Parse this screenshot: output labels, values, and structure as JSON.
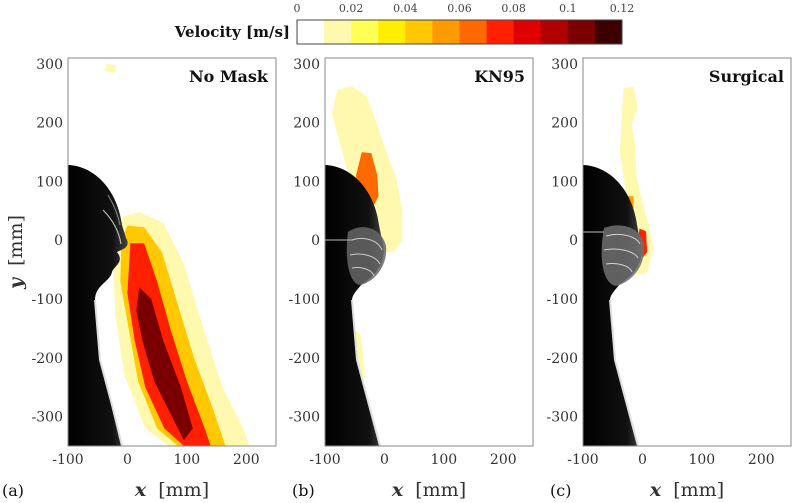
{
  "colorbar": {
    "label": "Velocity [m/s]",
    "ticks": [
      0,
      0.02,
      0.04,
      0.06,
      0.08,
      0.1,
      0.12
    ],
    "tick_labels": [
      "0",
      "0.02",
      "0.04",
      "0.06",
      "0.08",
      "0.1",
      "0.12"
    ],
    "levels": [
      0,
      0.01,
      0.02,
      0.03,
      0.04,
      0.05,
      0.06,
      0.07,
      0.08,
      0.09,
      0.1,
      0.11,
      0.12
    ],
    "colors": [
      "#ffffff",
      "#fff9b0",
      "#ffff55",
      "#ffee00",
      "#ffc800",
      "#ff9a00",
      "#ff6a00",
      "#ff2000",
      "#e00000",
      "#b00000",
      "#7a0000",
      "#3d0000"
    ]
  },
  "chart_data": [
    {
      "type": "heatmap",
      "panel": "(a)",
      "title": "No Mask",
      "xlabel_var": "x",
      "xlabel_unit": "[mm]",
      "ylabel_var": "y",
      "ylabel_unit": "[mm]",
      "xlim": [
        -100,
        250
      ],
      "ylim": [
        -350,
        310
      ],
      "xticks": [
        -100,
        0,
        100,
        200
      ],
      "yticks": [
        -300,
        -200,
        -100,
        0,
        100,
        200,
        300
      ],
      "velocity_regions": [
        {
          "velocity": 0.01,
          "outline_mm": [
            [
              -8,
              40
            ],
            [
              20,
              48
            ],
            [
              60,
              30
            ],
            [
              95,
              -40
            ],
            [
              128,
              -150
            ],
            [
              160,
              -250
            ],
            [
              195,
              -320
            ],
            [
              205,
              -350
            ],
            [
              70,
              -350
            ],
            [
              30,
              -320
            ],
            [
              -5,
              -230
            ],
            [
              -20,
              -130
            ],
            [
              -25,
              -40
            ],
            [
              -15,
              20
            ]
          ]
        },
        {
          "velocity": 0.04,
          "outline_mm": [
            [
              0,
              25
            ],
            [
              28,
              22
            ],
            [
              58,
              -20
            ],
            [
              85,
              -110
            ],
            [
              112,
              -200
            ],
            [
              145,
              -290
            ],
            [
              165,
              -350
            ],
            [
              85,
              -350
            ],
            [
              50,
              -320
            ],
            [
              18,
              -240
            ],
            [
              2,
              -150
            ],
            [
              -12,
              -70
            ],
            [
              -10,
              0
            ]
          ]
        },
        {
          "velocity": 0.07,
          "outline_mm": [
            [
              5,
              -5
            ],
            [
              28,
              -5
            ],
            [
              50,
              -70
            ],
            [
              72,
              -150
            ],
            [
              100,
              -240
            ],
            [
              130,
              -320
            ],
            [
              140,
              -350
            ],
            [
              95,
              -350
            ],
            [
              62,
              -320
            ],
            [
              30,
              -250
            ],
            [
              12,
              -170
            ],
            [
              0,
              -90
            ]
          ]
        },
        {
          "velocity": 0.1,
          "outline_mm": [
            [
              20,
              -80
            ],
            [
              40,
              -100
            ],
            [
              60,
              -170
            ],
            [
              90,
              -250
            ],
            [
              110,
              -320
            ],
            [
              95,
              -340
            ],
            [
              75,
              -300
            ],
            [
              45,
              -240
            ],
            [
              25,
              -170
            ],
            [
              15,
              -120
            ]
          ]
        }
      ],
      "far_field_patches": [
        {
          "velocity": 0.01,
          "outline_mm": [
            [
              -35,
              300
            ],
            [
              -20,
              298
            ],
            [
              -22,
              285
            ],
            [
              -38,
              288
            ]
          ]
        }
      ]
    },
    {
      "type": "heatmap",
      "panel": "(b)",
      "title": "KN95",
      "xlabel_var": "x",
      "xlabel_unit": "[mm]",
      "xlim": [
        -100,
        250
      ],
      "ylim": [
        -350,
        310
      ],
      "xticks": [
        -100,
        0,
        100,
        200
      ],
      "yticks": [
        -300,
        -200,
        -100,
        0,
        100,
        200,
        300
      ],
      "velocity_regions": [
        {
          "velocity": 0.01,
          "outline_mm": [
            [
              -80,
              255
            ],
            [
              -55,
              262
            ],
            [
              -30,
              245
            ],
            [
              -15,
              205
            ],
            [
              0,
              160
            ],
            [
              20,
              105
            ],
            [
              30,
              50
            ],
            [
              30,
              0
            ],
            [
              15,
              -20
            ],
            [
              -5,
              -20
            ],
            [
              -20,
              10
            ],
            [
              -40,
              45
            ],
            [
              -60,
              110
            ],
            [
              -75,
              165
            ],
            [
              -88,
              215
            ]
          ]
        },
        {
          "velocity": 0.06,
          "outline_mm": [
            [
              -38,
              150
            ],
            [
              -22,
              148
            ],
            [
              -12,
              110
            ],
            [
              -10,
              75
            ],
            [
              -20,
              55
            ],
            [
              -42,
              70
            ],
            [
              -48,
              110
            ]
          ]
        },
        {
          "velocity": 0.01,
          "outline_mm": [
            [
              -55,
              -150
            ],
            [
              -40,
              -160
            ],
            [
              -32,
              -230
            ],
            [
              -40,
              -250
            ],
            [
              -55,
              -225
            ]
          ]
        }
      ],
      "far_field_patches": []
    },
    {
      "type": "heatmap",
      "panel": "(c)",
      "title": "Surgical",
      "xlabel_var": "x",
      "xlabel_unit": "[mm]",
      "xlim": [
        -100,
        250
      ],
      "ylim": [
        -350,
        310
      ],
      "xticks": [
        -100,
        0,
        100,
        200
      ],
      "yticks": [
        -300,
        -200,
        -100,
        0,
        100,
        200,
        300
      ],
      "velocity_regions": [
        {
          "velocity": 0.01,
          "outline_mm": [
            [
              -32,
              258
            ],
            [
              -15,
              262
            ],
            [
              -8,
              225
            ],
            [
              -18,
              195
            ],
            [
              -12,
              160
            ],
            [
              -10,
              110
            ],
            [
              0,
              65
            ],
            [
              12,
              20
            ],
            [
              18,
              -15
            ],
            [
              8,
              -55
            ],
            [
              -10,
              -60
            ],
            [
              -18,
              -20
            ],
            [
              -28,
              35
            ],
            [
              -30,
              95
            ],
            [
              -38,
              150
            ],
            [
              -35,
              205
            ]
          ]
        },
        {
          "velocity": 0.07,
          "outline_mm": [
            [
              -5,
              20
            ],
            [
              6,
              15
            ],
            [
              8,
              -20
            ],
            [
              0,
              -30
            ],
            [
              -8,
              -5
            ]
          ]
        },
        {
          "velocity": 0.05,
          "outline_mm": [
            [
              -25,
              75
            ],
            [
              -15,
              75
            ],
            [
              -15,
              55
            ],
            [
              -25,
              55
            ]
          ]
        }
      ],
      "far_field_patches": []
    }
  ]
}
